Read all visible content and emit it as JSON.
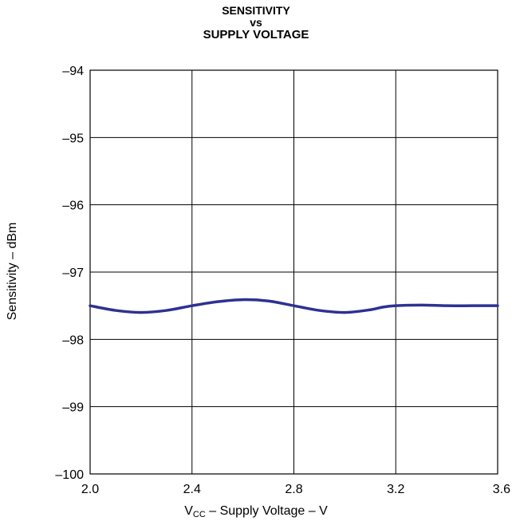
{
  "chart_data": {
    "type": "line",
    "title": [
      "SENSITIVITY",
      "vs",
      "SUPPLY VOLTAGE"
    ],
    "xlabel": {
      "main": "V",
      "sub": "CC",
      "rest": " – Supply Voltage – V"
    },
    "ylabel": "Sensitivity – dBm",
    "xlim": [
      2.0,
      3.6
    ],
    "ylim": [
      -100,
      -94
    ],
    "xticks": [
      2.0,
      2.4,
      2.8,
      3.2,
      3.6
    ],
    "xtick_labels": [
      "2.0",
      "2.4",
      "2.8",
      "3.2",
      "3.6"
    ],
    "yticks": [
      -94,
      -95,
      -96,
      -97,
      -98,
      -99,
      -100
    ],
    "ytick_labels": [
      "–94",
      "–95",
      "–96",
      "–97",
      "–98",
      "–99",
      "–100"
    ],
    "grid": true,
    "line_color": "#2e3192",
    "series": [
      {
        "x": [
          2.0,
          2.1,
          2.2,
          2.3,
          2.4,
          2.5,
          2.6,
          2.7,
          2.8,
          2.9,
          3.0,
          3.1,
          3.15,
          3.2,
          3.3,
          3.4,
          3.5,
          3.6
        ],
        "values": [
          -97.5,
          -97.57,
          -97.6,
          -97.57,
          -97.5,
          -97.44,
          -97.41,
          -97.43,
          -97.5,
          -97.57,
          -97.6,
          -97.56,
          -97.52,
          -97.5,
          -97.49,
          -97.5,
          -97.5,
          -97.5
        ]
      }
    ]
  }
}
